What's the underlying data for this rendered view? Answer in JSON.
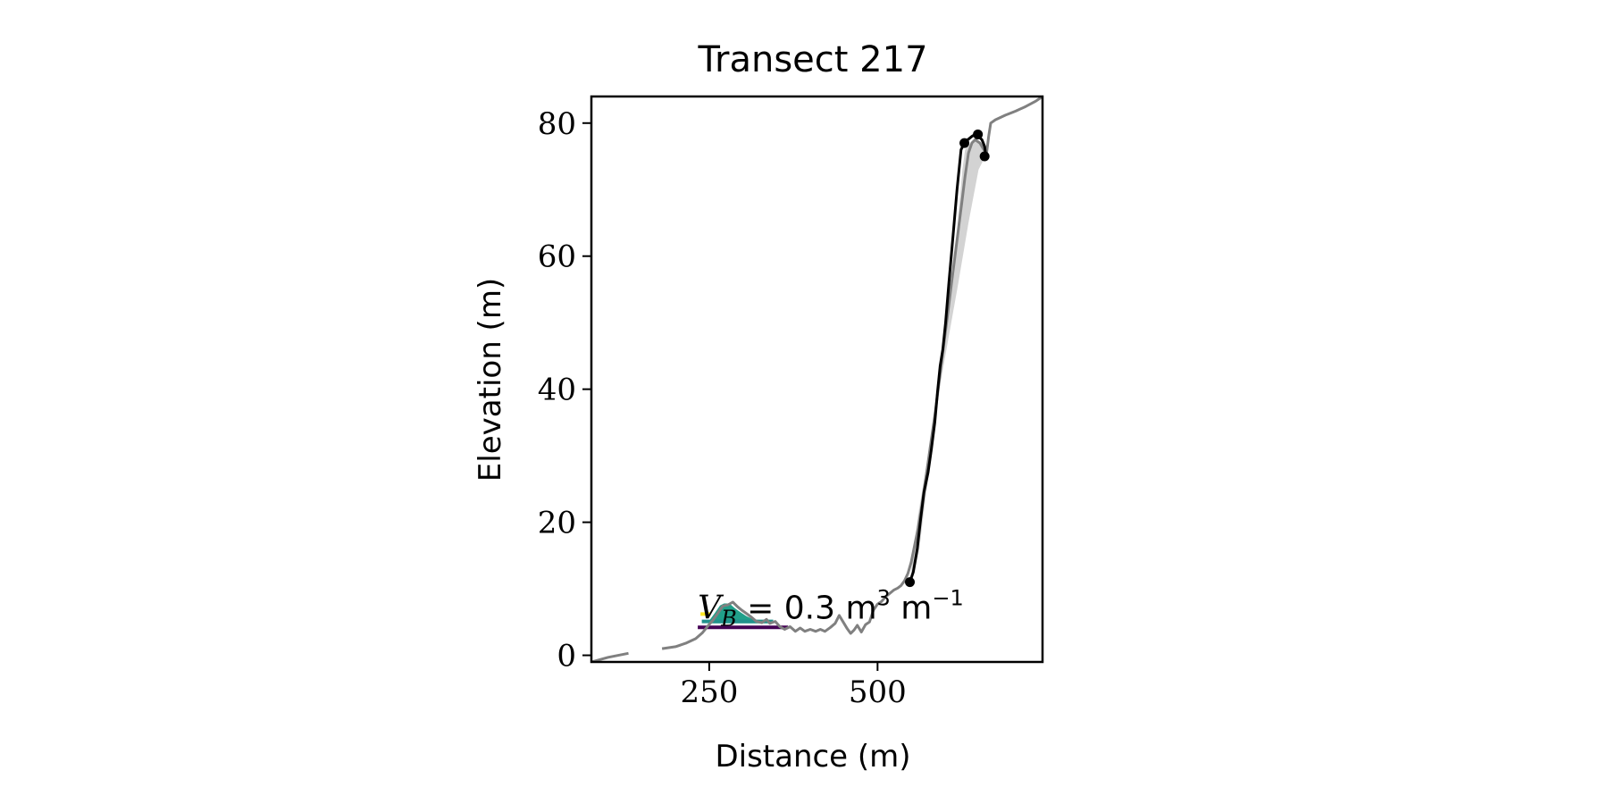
{
  "chart_data": {
    "type": "line",
    "title": "Transect 217",
    "xlabel": "Distance (m)",
    "ylabel": "Elevation (m)",
    "xlim": [
      75,
      745
    ],
    "ylim": [
      -1,
      84
    ],
    "xticks": [
      250,
      500
    ],
    "xtick_labels": [
      "250",
      "500"
    ],
    "yticks": [
      0,
      20,
      40,
      60,
      80
    ],
    "ytick_labels": [
      "0",
      "20",
      "40",
      "60",
      "80"
    ],
    "grid": false,
    "annotation": {
      "text_main": "V",
      "text_sub": "B",
      "text_rest": " = 0.3 m",
      "text_sup1": "3",
      "text_mid": " m",
      "text_sup2": "−1",
      "x": 233,
      "y": 5.5
    },
    "profile": {
      "name": "profile",
      "color": "#808080",
      "segments": [
        [
          [
            75,
            -1
          ],
          [
            100,
            -0.3
          ],
          [
            130,
            0.3
          ]
        ],
        [
          [
            180,
            1
          ],
          [
            200,
            1.3
          ],
          [
            215,
            1.8
          ],
          [
            230,
            2.5
          ],
          [
            240,
            3.4
          ],
          [
            248,
            4.4
          ],
          [
            255,
            5.2
          ],
          [
            262,
            6.2
          ],
          [
            270,
            7.4
          ],
          [
            278,
            7.6
          ],
          [
            285,
            8.0
          ],
          [
            292,
            7.3
          ],
          [
            298,
            6.8
          ],
          [
            305,
            6.3
          ],
          [
            312,
            5.8
          ],
          [
            320,
            5.1
          ],
          [
            328,
            4.9
          ],
          [
            335,
            5.4
          ],
          [
            340,
            4.8
          ],
          [
            348,
            5.1
          ],
          [
            355,
            4.3
          ],
          [
            362,
            3.9
          ],
          [
            370,
            4.3
          ],
          [
            378,
            3.6
          ],
          [
            385,
            4.1
          ],
          [
            392,
            3.6
          ],
          [
            400,
            3.9
          ],
          [
            408,
            3.6
          ],
          [
            415,
            3.9
          ],
          [
            422,
            3.6
          ],
          [
            430,
            4.2
          ],
          [
            437,
            4.8
          ],
          [
            443,
            6.0
          ],
          [
            449,
            5.0
          ],
          [
            455,
            4.0
          ],
          [
            460,
            3.3
          ],
          [
            465,
            3.8
          ],
          [
            470,
            4.5
          ],
          [
            476,
            3.5
          ],
          [
            482,
            4.6
          ],
          [
            488,
            5.0
          ],
          [
            494,
            6.8
          ],
          [
            500,
            7.7
          ],
          [
            506,
            8.1
          ],
          [
            512,
            8.8
          ],
          [
            518,
            9.3
          ],
          [
            524,
            9.8
          ],
          [
            530,
            10.1
          ],
          [
            535,
            10.5
          ],
          [
            540,
            11.2
          ],
          [
            545,
            12.3
          ],
          [
            550,
            14.0
          ],
          [
            555,
            16.5
          ],
          [
            560,
            19.0
          ],
          [
            565,
            22.0
          ],
          [
            570,
            25.5
          ],
          [
            575,
            29.0
          ],
          [
            580,
            32.5
          ],
          [
            585,
            36.0
          ],
          [
            590,
            40.0
          ],
          [
            595,
            44.0
          ],
          [
            600,
            48.0
          ],
          [
            605,
            52.0
          ],
          [
            610,
            56.0
          ],
          [
            615,
            60.0
          ],
          [
            620,
            64.0
          ],
          [
            625,
            68.0
          ],
          [
            630,
            72.0
          ],
          [
            635,
            75.5
          ],
          [
            640,
            77.0
          ],
          [
            645,
            77.5
          ],
          [
            652,
            77.0
          ],
          [
            658,
            76.0
          ],
          [
            662,
            75.5
          ],
          [
            665,
            78.0
          ],
          [
            668,
            80.0
          ],
          [
            675,
            80.5
          ],
          [
            690,
            81.2
          ],
          [
            705,
            81.8
          ],
          [
            720,
            82.5
          ],
          [
            735,
            83.3
          ],
          [
            745,
            84.0
          ]
        ]
      ]
    },
    "fill_region": {
      "color": "#d3d3d3",
      "upper": [
        [
          548,
          11.0
        ],
        [
          560,
          21.0
        ],
        [
          575,
          30.0
        ],
        [
          590,
          39.0
        ],
        [
          605,
          47.5
        ],
        [
          620,
          56.0
        ],
        [
          635,
          65.0
        ],
        [
          650,
          73.0
        ],
        [
          660,
          75.0
        ]
      ],
      "lower": [
        [
          548,
          11.0
        ],
        [
          555,
          12.5
        ],
        [
          562,
          16.0
        ],
        [
          568,
          21.0
        ],
        [
          575,
          26.5
        ],
        [
          582,
          31.0
        ],
        [
          588,
          37.5
        ],
        [
          593,
          41.5
        ],
        [
          598,
          45.5
        ],
        [
          604,
          50.0
        ],
        [
          610,
          55.0
        ],
        [
          616,
          61.0
        ],
        [
          621,
          67.0
        ],
        [
          626,
          73.0
        ],
        [
          630,
          76.0
        ],
        [
          634,
          76.5
        ],
        [
          638,
          77.0
        ],
        [
          645,
          77.5
        ],
        [
          652,
          77.0
        ],
        [
          657,
          76.0
        ],
        [
          660,
          75.0
        ]
      ]
    },
    "fitted_line": {
      "color": "#000000",
      "points": [
        [
          548,
          11.0
        ],
        [
          553,
          12.5
        ],
        [
          559,
          16.0
        ],
        [
          564,
          20.5
        ],
        [
          569,
          24.5
        ],
        [
          575,
          27.5
        ],
        [
          580,
          31.0
        ],
        [
          585,
          35.0
        ],
        [
          589,
          39.5
        ],
        [
          593,
          43.5
        ],
        [
          597,
          46.0
        ],
        [
          601,
          50.0
        ],
        [
          606,
          56.0
        ],
        [
          612,
          63.0
        ],
        [
          618,
          70.0
        ],
        [
          624,
          76.0
        ],
        [
          629,
          77.0
        ],
        [
          634,
          77.5
        ],
        [
          640,
          78.0
        ],
        [
          645,
          78.3
        ],
        [
          650,
          78.0
        ],
        [
          655,
          77.5
        ],
        [
          659,
          76.5
        ],
        [
          661,
          75.0
        ]
      ]
    },
    "markers": {
      "color": "#000000",
      "points": [
        [
          548,
          11.0
        ],
        [
          629,
          77.0
        ],
        [
          649,
          78.3
        ],
        [
          659,
          75.0
        ]
      ]
    },
    "bars": [
      {
        "color": "#fde725",
        "x0": 237,
        "x1": 252,
        "y": 6.2
      },
      {
        "color": "#21918c",
        "x0": 239,
        "x1": 345,
        "y": 5.1
      },
      {
        "color": "#440154",
        "x0": 233,
        "x1": 367,
        "y": 4.2
      }
    ],
    "dune_fill": {
      "color": "#21a08a",
      "points": [
        [
          250,
          5.2
        ],
        [
          258,
          6.3
        ],
        [
          266,
          7.5
        ],
        [
          272,
          7.8
        ],
        [
          280,
          7.8
        ],
        [
          288,
          7.1
        ],
        [
          296,
          6.5
        ],
        [
          305,
          5.9
        ],
        [
          315,
          5.4
        ],
        [
          325,
          5.1
        ],
        [
          345,
          5.1
        ],
        [
          345,
          4.8
        ],
        [
          250,
          4.8
        ]
      ]
    }
  }
}
